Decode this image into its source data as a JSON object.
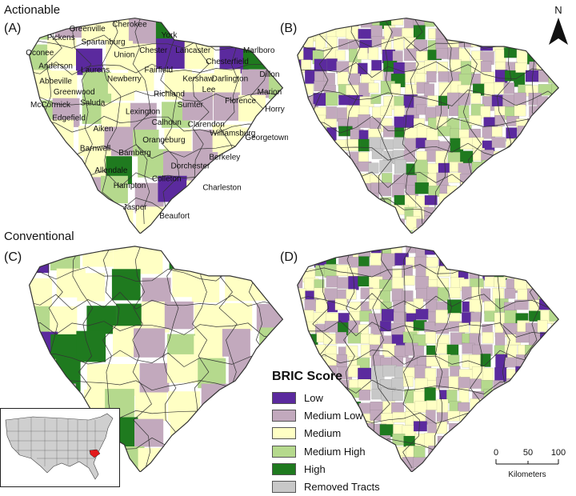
{
  "sections": {
    "top": "Actionable",
    "bottom": "Conventional"
  },
  "panels": {
    "a": "(A)",
    "b": "(B)",
    "c": "(C)",
    "d": "(D)"
  },
  "north_label": "N",
  "counties": [
    "Oconee",
    "Pickens",
    "Greenville",
    "Cherokee",
    "York",
    "Spartanburg",
    "Union",
    "Chester",
    "Lancaster",
    "Chesterfield",
    "Marlboro",
    "Anderson",
    "Laurens",
    "Fairfield",
    "Abbeville",
    "Newberry",
    "Kershaw",
    "Darlington",
    "Dillon",
    "Lee",
    "Greenwood",
    "Marion",
    "Richland",
    "Florence",
    "McCormick",
    "Saluda",
    "Horry",
    "Lexington",
    "Sumter",
    "Edgefield",
    "Calhoun",
    "Aiken",
    "Clarendon",
    "Williamsburg",
    "Orangeburg",
    "Georgetown",
    "Barnwell",
    "Bamberg",
    "Berkeley",
    "Dorchester",
    "Allendale",
    "Colleton",
    "Hampton",
    "Charleston",
    "Jasper",
    "Beaufort"
  ],
  "legend": {
    "title": "BRIC Score",
    "items": [
      {
        "label": "Low",
        "color": "#5b2a9e"
      },
      {
        "label": "Medium Low",
        "color": "#c2a9bd"
      },
      {
        "label": "Medium",
        "color": "#ffffc4"
      },
      {
        "label": "Medium High",
        "color": "#b5d98d"
      },
      {
        "label": "High",
        "color": "#1f7a1f"
      },
      {
        "label": "Removed Tracts",
        "color": "#c8c8c8"
      }
    ]
  },
  "scale": {
    "ticks": [
      "0",
      "50",
      "100"
    ],
    "unit": "Kilometers"
  },
  "colors": {
    "outline": "#333333",
    "state_highlight": "#e31a1c",
    "inset_states": "#cfcfcf"
  }
}
